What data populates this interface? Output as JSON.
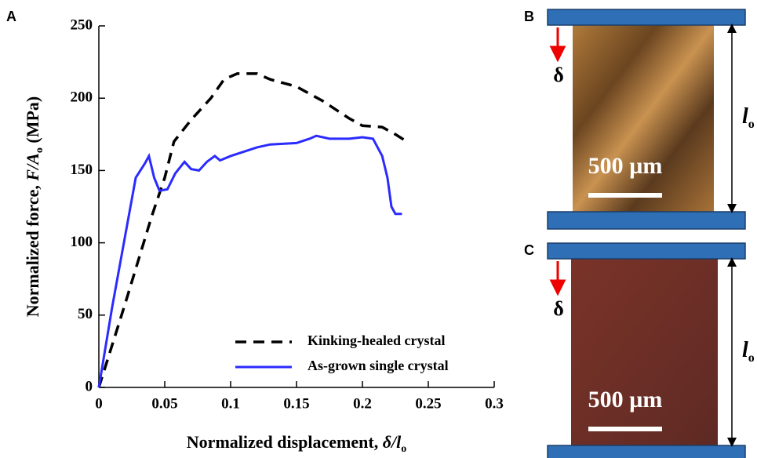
{
  "chart_data": {
    "type": "line",
    "panel_label": "A",
    "xlabel": [
      "Normalized displacement, ",
      "δ/l",
      "o"
    ],
    "ylabel": [
      "Normalized force, ",
      "F/A",
      "o",
      " (MPa)"
    ],
    "xlim": [
      0,
      0.3
    ],
    "xticks": [
      0,
      0.05,
      0.1,
      0.15,
      0.2,
      0.25,
      0.3
    ],
    "ylim": [
      0,
      250
    ],
    "yticks": [
      0,
      50,
      100,
      150,
      200,
      250
    ],
    "legend": "lower right",
    "series": [
      {
        "name": "Kinking-healed crystal",
        "color": "#000000",
        "linestyle": "dashed",
        "x": [
          0,
          0.02,
          0.04,
          0.05,
          0.057,
          0.07,
          0.085,
          0.095,
          0.105,
          0.12,
          0.13,
          0.15,
          0.17,
          0.19,
          0.2,
          0.215,
          0.225,
          0.232
        ],
        "values": [
          0,
          58,
          118,
          145,
          170,
          185,
          200,
          213,
          217,
          217,
          213,
          208,
          198,
          186,
          181,
          180,
          175,
          171
        ]
      },
      {
        "name": "As-grown single crystal",
        "color": "#2b2bff",
        "linestyle": "solid",
        "x": [
          0,
          0.01,
          0.02,
          0.028,
          0.035,
          0.038,
          0.042,
          0.046,
          0.052,
          0.058,
          0.065,
          0.07,
          0.076,
          0.082,
          0.088,
          0.092,
          0.1,
          0.11,
          0.12,
          0.13,
          0.15,
          0.16,
          0.165,
          0.175,
          0.19,
          0.2,
          0.208,
          0.215,
          0.219,
          0.222,
          0.225,
          0.23
        ],
        "values": [
          0,
          55,
          105,
          145,
          155,
          160,
          145,
          136,
          137,
          148,
          156,
          151,
          150,
          156,
          160,
          157,
          160,
          163,
          166,
          168,
          169,
          172,
          174,
          172,
          172,
          173,
          172,
          160,
          145,
          125,
          120,
          120
        ]
      }
    ]
  },
  "insets": [
    {
      "label": "B",
      "delta": "δ",
      "length": "l",
      "length_sub": "o",
      "scale": "500 µm"
    },
    {
      "label": "C",
      "delta": "δ",
      "length": "l",
      "length_sub": "o",
      "scale": "500 µm"
    }
  ]
}
